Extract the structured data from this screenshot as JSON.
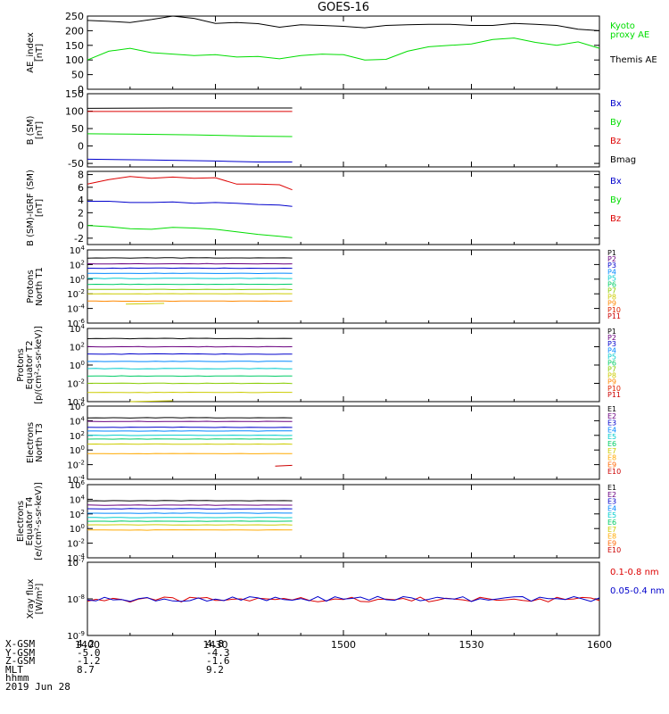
{
  "title": "GOES-16",
  "colors": {
    "black": "#000000",
    "green": "#00dd00",
    "red": "#dd0000",
    "blue": "#0000cc",
    "p_colors": [
      "#000000",
      "#6a0080",
      "#0000cc",
      "#0088ff",
      "#00cccc",
      "#00cc66",
      "#88cc00",
      "#cccc00",
      "#ff8800",
      "#dd2200",
      "#cc0000"
    ],
    "e_colors": [
      "#000000",
      "#6a0080",
      "#0000cc",
      "#0088ff",
      "#00cccc",
      "#00cc66",
      "#cccc00",
      "#ffaa00",
      "#ff6600",
      "#cc0000"
    ]
  },
  "chart_data": [
    {
      "type": "line",
      "ylabel": "AE_index\n[nT]",
      "ylim": [
        0,
        250
      ],
      "yticks": [
        "0",
        "50",
        "100",
        "150",
        "200",
        "250"
      ],
      "legend": [
        {
          "text": "Kyoto\nproxy AE",
          "color": "#00dd00"
        },
        {
          "text": "Themis AE",
          "color": "#000000"
        }
      ],
      "series": [
        {
          "name": "Themis AE",
          "color": "#000000",
          "x": [
            1400,
            1405,
            1410,
            1415,
            1420,
            1425,
            1430,
            1435,
            1440,
            1445,
            1450,
            1455,
            1500,
            1505,
            1510,
            1515,
            1520,
            1525,
            1530,
            1535,
            1540,
            1545,
            1550,
            1555,
            1600
          ],
          "values": [
            235,
            232,
            228,
            238,
            250,
            242,
            225,
            228,
            224,
            212,
            220,
            218,
            215,
            210,
            218,
            220,
            222,
            222,
            218,
            218,
            225,
            222,
            218,
            205,
            200
          ]
        },
        {
          "name": "Kyoto proxy AE",
          "color": "#00dd00",
          "x": [
            1400,
            1405,
            1410,
            1415,
            1420,
            1425,
            1430,
            1435,
            1440,
            1445,
            1450,
            1455,
            1500,
            1505,
            1510,
            1515,
            1520,
            1525,
            1530,
            1535,
            1540,
            1545,
            1550,
            1555,
            1600
          ],
          "values": [
            100,
            130,
            140,
            125,
            120,
            115,
            118,
            110,
            112,
            104,
            115,
            120,
            118,
            100,
            102,
            130,
            145,
            150,
            155,
            170,
            175,
            160,
            150,
            162,
            140
          ]
        }
      ]
    },
    {
      "type": "line",
      "ylabel": "B (SM)\n[nT]",
      "ylim": [
        -60,
        150
      ],
      "yticks": [
        "-50",
        "0",
        "50",
        "100",
        "150"
      ],
      "ytick_vals": [
        -50,
        0,
        50,
        100,
        150
      ],
      "legend": [
        {
          "text": "Bx",
          "color": "#0000cc"
        },
        {
          "text": "By",
          "color": "#00dd00"
        },
        {
          "text": "Bz",
          "color": "#dd0000"
        },
        {
          "text": "Bmag",
          "color": "#000000"
        }
      ],
      "series": [
        {
          "name": "Bmag",
          "color": "#000000",
          "x": [
            1400,
            1420,
            1440,
            1448
          ],
          "values": [
            108,
            109,
            109,
            109
          ]
        },
        {
          "name": "Bz",
          "color": "#dd0000",
          "x": [
            1400,
            1420,
            1440,
            1448
          ],
          "values": [
            99,
            99,
            99,
            99
          ]
        },
        {
          "name": "By",
          "color": "#00dd00",
          "x": [
            1400,
            1410,
            1425,
            1440,
            1448
          ],
          "values": [
            35,
            34,
            32,
            28,
            27
          ]
        },
        {
          "name": "Bx",
          "color": "#0000cc",
          "x": [
            1400,
            1415,
            1430,
            1440,
            1448
          ],
          "values": [
            -38,
            -40,
            -43,
            -46,
            -46
          ]
        }
      ]
    },
    {
      "type": "line",
      "ylabel": "B (SM)-IGRF (SM)\n[nT]",
      "ylim": [
        -3,
        8.5
      ],
      "yticks": [
        "-2",
        "0",
        "2",
        "4",
        "6",
        "8"
      ],
      "ytick_vals": [
        -2,
        0,
        2,
        4,
        6,
        8
      ],
      "legend": [
        {
          "text": "Bx",
          "color": "#0000cc"
        },
        {
          "text": "By",
          "color": "#00dd00"
        },
        {
          "text": "Bz",
          "color": "#dd0000"
        }
      ],
      "series": [
        {
          "name": "Bz",
          "color": "#dd0000",
          "x": [
            1400,
            1405,
            1410,
            1415,
            1420,
            1425,
            1430,
            1435,
            1440,
            1445,
            1448
          ],
          "values": [
            6.5,
            7.2,
            7.7,
            7.4,
            7.6,
            7.4,
            7.5,
            6.5,
            6.5,
            6.4,
            5.6
          ]
        },
        {
          "name": "Bx",
          "color": "#0000cc",
          "x": [
            1400,
            1405,
            1410,
            1415,
            1420,
            1425,
            1430,
            1435,
            1440,
            1445,
            1448
          ],
          "values": [
            3.8,
            3.8,
            3.6,
            3.6,
            3.7,
            3.5,
            3.6,
            3.5,
            3.3,
            3.2,
            3.0
          ]
        },
        {
          "name": "By",
          "color": "#00dd00",
          "x": [
            1400,
            1405,
            1410,
            1415,
            1420,
            1425,
            1430,
            1435,
            1440,
            1445,
            1448
          ],
          "values": [
            0.0,
            -0.2,
            -0.5,
            -0.6,
            -0.3,
            -0.4,
            -0.6,
            -1.0,
            -1.4,
            -1.7,
            -1.9
          ]
        }
      ]
    },
    {
      "type": "line",
      "log": true,
      "ylabel": "Protons\nNorth T1",
      "ylim_exp": [
        -6,
        4
      ],
      "yticks_exp": [
        -6,
        -4,
        -2,
        0,
        2,
        4
      ],
      "legend_kind": "P",
      "series_logvals": [
        2.9,
        2.1,
        1.5,
        0.8,
        0.1,
        -0.7,
        -1.4,
        -2.0,
        -3.0
      ],
      "extra": {
        "x": [
          1409,
          1418
        ],
        "values": [
          -3.4,
          -3.3
        ]
      },
      "x_end": 1448
    },
    {
      "type": "line",
      "log": true,
      "ylabel": "Protons\nEquator T2\n[p/(cm²-s-sr-keV)]",
      "ylim_exp": [
        -4,
        4
      ],
      "yticks_exp": [
        -4,
        -2,
        0,
        2,
        4
      ],
      "legend_kind": "P",
      "series_logvals": [
        2.9,
        2.0,
        1.2,
        0.4,
        -0.4,
        -1.2,
        -2.0,
        -3.0
      ],
      "extra": {
        "x": [
          1410,
          1420
        ],
        "values": [
          -4.0,
          -3.9
        ]
      },
      "x_end": 1448
    },
    {
      "type": "line",
      "log": true,
      "ylabel": "Electrons\nNorth T3",
      "ylim_exp": [
        -4,
        6
      ],
      "yticks_exp": [
        -4,
        -2,
        0,
        2,
        4,
        6
      ],
      "legend_kind": "E",
      "series_logvals": [
        4.4,
        3.9,
        3.1,
        2.6,
        2.0,
        1.5,
        0.8,
        -0.5
      ],
      "extra": {
        "x": [
          1444,
          1448
        ],
        "values": [
          -2.2,
          -2.1
        ]
      },
      "x_end": 1448
    },
    {
      "type": "line",
      "log": true,
      "ylabel": "Electrons\nEquator T4\n[e/(cm²-s-sr-keV)]",
      "ylim_exp": [
        -4,
        6
      ],
      "yticks_exp": [
        -4,
        -2,
        0,
        2,
        4,
        6
      ],
      "legend_kind": "E",
      "series_logvals": [
        3.8,
        3.2,
        2.7,
        2.1,
        1.5,
        1.0,
        0.5,
        -0.2
      ],
      "x_end": 1448
    },
    {
      "type": "line",
      "log": true,
      "ylabel": "Xray flux\n[W/m²]",
      "ylim_exp": [
        -9,
        -7
      ],
      "yticks_exp": [
        -9,
        -8,
        -7
      ],
      "legend": [
        {
          "text": "0.1-0.8 nm",
          "color": "#dd0000"
        },
        {
          "text": "0.05-0.4 nm",
          "color": "#0000cc"
        }
      ],
      "series": [
        {
          "name": "0.1-0.8 nm",
          "color": "#dd0000"
        },
        {
          "name": "0.05-0.4 nm",
          "color": "#0000cc"
        }
      ]
    }
  ],
  "xaxis": {
    "xlim": [
      1400,
      1600
    ],
    "ticks": [
      {
        "v": 1400,
        "label": "1400"
      },
      {
        "v": 1430,
        "label": "1430"
      },
      {
        "v": 1500,
        "label": "1500"
      },
      {
        "v": 1530,
        "label": "1530"
      },
      {
        "v": 1600,
        "label": "1600"
      }
    ]
  },
  "ephemeris": {
    "labels": [
      "X-GSM",
      "Y-GSM",
      "Z-GSM",
      "MLT",
      "hhmm",
      "2019 Jun 28"
    ],
    "col1": [
      "4.2",
      "-5.0",
      "-1.2",
      "8.7"
    ],
    "col2": [
      "4.8",
      "-4.3",
      "-1.6",
      "9.2"
    ]
  }
}
